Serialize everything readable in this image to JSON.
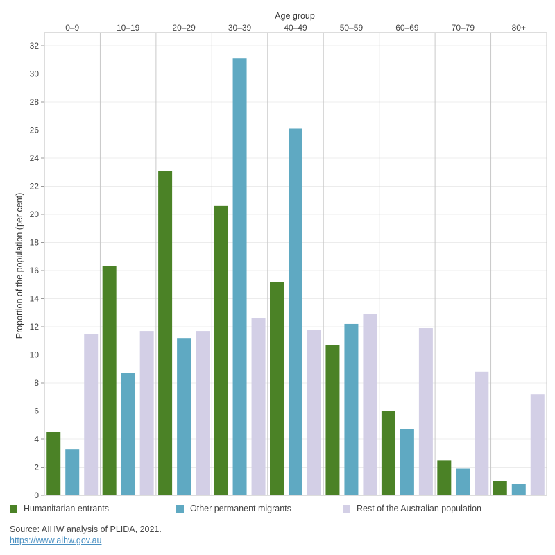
{
  "chart_data": {
    "type": "bar",
    "top_axis_title": "Age group",
    "ylabel": "Proportion of the population (per cent)",
    "categories": [
      "0–9",
      "10–19",
      "20–29",
      "30–39",
      "40–49",
      "50–59",
      "60–69",
      "70–79",
      "80+"
    ],
    "ylim": [
      0,
      32
    ],
    "yticks": [
      0,
      2,
      4,
      6,
      8,
      10,
      12,
      14,
      16,
      18,
      20,
      22,
      24,
      26,
      28,
      30,
      32
    ],
    "grid": true,
    "legend_position": "bottom",
    "series": [
      {
        "name": "Humanitarian entrants",
        "color": "#4b8226",
        "values": [
          4.5,
          16.3,
          23.1,
          20.6,
          15.2,
          10.7,
          6.0,
          2.5,
          1.0
        ]
      },
      {
        "name": "Other permanent migrants",
        "color": "#5fa9c2",
        "values": [
          3.3,
          8.7,
          11.2,
          31.1,
          26.1,
          12.2,
          4.7,
          1.9,
          0.8
        ]
      },
      {
        "name": "Rest of the Australian population",
        "color": "#d3cfe6",
        "values": [
          11.5,
          11.7,
          11.7,
          12.6,
          11.8,
          12.9,
          11.9,
          8.8,
          7.2
        ]
      }
    ]
  },
  "footer": {
    "source": "Source: AIHW analysis of PLIDA, 2021.",
    "link": "https://www.aihw.gov.au"
  }
}
